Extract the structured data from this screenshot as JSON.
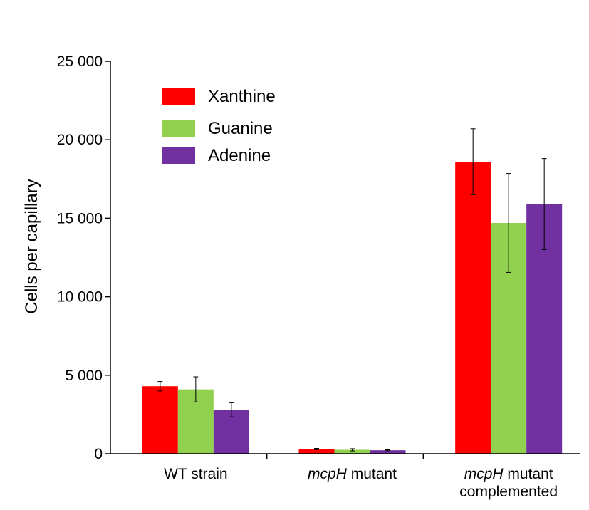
{
  "chart_data": {
    "type": "bar",
    "title": "",
    "xlabel": "",
    "ylabel": "Cells per capillary",
    "ylim": [
      0,
      25000
    ],
    "yticks": [
      0,
      5000,
      10000,
      15000,
      20000,
      25000
    ],
    "ytick_labels": [
      "0",
      "5 000",
      "10 000",
      "15 000",
      "20 000",
      "25 000"
    ],
    "grid": false,
    "legend_position": "top-left",
    "categories": [
      {
        "lines": [
          [
            {
              "text": "WT strain",
              "italic": false
            }
          ]
        ]
      },
      {
        "lines": [
          [
            {
              "text": "mcpH",
              "italic": true
            },
            {
              "text": " mutant",
              "italic": false
            }
          ]
        ]
      },
      {
        "lines": [
          [
            {
              "text": "mcpH",
              "italic": true
            },
            {
              "text": " mutant",
              "italic": false
            }
          ],
          [
            {
              "text": "complemented",
              "italic": false
            }
          ]
        ]
      }
    ],
    "series": [
      {
        "name": "Xanthine",
        "color": "#ff0000",
        "values": [
          4300,
          300,
          18600
        ],
        "errors": [
          300,
          40,
          2100
        ]
      },
      {
        "name": "Guanine",
        "color": "#92d050",
        "values": [
          4100,
          250,
          14700
        ],
        "errors": [
          800,
          70,
          3150
        ]
      },
      {
        "name": "Adenine",
        "color": "#7030a0",
        "values": [
          2800,
          220,
          15900
        ],
        "errors": [
          450,
          30,
          2900
        ]
      }
    ]
  }
}
